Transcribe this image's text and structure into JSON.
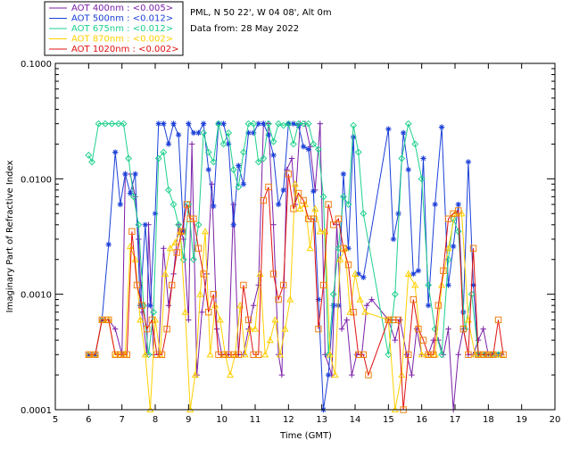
{
  "chart_data": {
    "type": "line",
    "title_lines": [
      "PML, N 50 22', W 04 08', Alt 0m",
      "Data from: 28 May 2022"
    ],
    "xlabel": "Time (GMT)",
    "ylabel": "Imaginary Part of Refractive Index",
    "xlim": [
      5,
      20
    ],
    "ylim": [
      0.0001,
      0.1
    ],
    "yscale": "log",
    "x_ticks": [
      "5",
      "6",
      "7",
      "8",
      "9",
      "10",
      "11",
      "12",
      "13",
      "14",
      "15",
      "16",
      "17",
      "18",
      "19",
      "20"
    ],
    "y_ticks": [
      "0.0001",
      "0.0010",
      "0.0100",
      "0.1000"
    ],
    "legend_position": "top-left",
    "series": [
      {
        "name": "AOT  400nm : <0.005>",
        "color": "#7a1fa8",
        "marker": "plus",
        "x": [
          6.0,
          6.2,
          6.4,
          6.6,
          6.8,
          7.0,
          7.1,
          7.25,
          7.4,
          7.5,
          7.6,
          7.75,
          7.8,
          7.95,
          8.1,
          8.25,
          8.4,
          8.55,
          8.7,
          8.85,
          9.0,
          9.1,
          9.25,
          9.4,
          9.55,
          9.7,
          9.85,
          10.0,
          10.2,
          10.35,
          10.5,
          10.65,
          10.8,
          10.95,
          11.1,
          11.25,
          11.4,
          11.55,
          11.7,
          11.8,
          11.95,
          12.1,
          12.2,
          12.35,
          12.5,
          12.65,
          12.8,
          12.95,
          13.1,
          13.3,
          13.45,
          13.6,
          13.75,
          13.9,
          14.05,
          14.2,
          14.35,
          14.5,
          15.0,
          15.2,
          15.35,
          15.55,
          15.7,
          15.85,
          16.0,
          16.2,
          16.35,
          16.5,
          16.65,
          16.8,
          16.95,
          17.1,
          17.25,
          17.4,
          17.55,
          17.7,
          17.85,
          18.0,
          18.2,
          18.4
        ],
        "y": [
          0.0003,
          0.0003,
          0.0006,
          0.0006,
          0.0005,
          0.0003,
          0.011,
          0.011,
          0.007,
          0.003,
          0.0007,
          0.0003,
          0.004,
          0.0003,
          0.0003,
          0.0025,
          0.0008,
          0.0015,
          0.004,
          0.003,
          0.0006,
          0.02,
          0.0002,
          0.0007,
          0.0015,
          0.009,
          0.0005,
          0.0003,
          0.0003,
          0.006,
          0.0003,
          0.0003,
          0.0005,
          0.0008,
          0.0012,
          0.03,
          0.03,
          0.004,
          0.0003,
          0.0002,
          0.012,
          0.015,
          0.006,
          0.03,
          0.03,
          0.019,
          0.008,
          0.03,
          0.0003,
          0.0002,
          0.004,
          0.0005,
          0.0006,
          0.0002,
          0.0003,
          0.0003,
          0.0008,
          0.0009,
          0.0006,
          0.0004,
          0.0006,
          0.0003,
          0.0002,
          0.0005,
          0.0003,
          0.0003,
          0.0004,
          0.0004,
          0.0003,
          0.0005,
          0.0001,
          0.0003,
          0.0005,
          0.0003,
          0.0003,
          0.0004,
          0.0005,
          0.0003,
          0.0003,
          0.0003
        ]
      },
      {
        "name": "AOT  500nm : <0.012>",
        "color": "#1a3fd8",
        "marker": "asterisk",
        "x": [
          6.0,
          6.2,
          6.4,
          6.6,
          6.8,
          6.95,
          7.1,
          7.25,
          7.4,
          7.55,
          7.7,
          7.85,
          8.0,
          8.1,
          8.25,
          8.4,
          8.55,
          8.7,
          8.85,
          9.0,
          9.15,
          9.3,
          9.45,
          9.6,
          9.75,
          9.9,
          10.05,
          10.2,
          10.35,
          10.5,
          10.65,
          10.8,
          10.95,
          11.1,
          11.25,
          11.4,
          11.55,
          11.7,
          11.85,
          12.0,
          12.15,
          12.3,
          12.45,
          12.6,
          12.75,
          12.9,
          13.05,
          13.2,
          13.35,
          13.5,
          13.65,
          13.8,
          13.95,
          14.1,
          14.25,
          15.0,
          15.15,
          15.3,
          15.45,
          15.6,
          15.75,
          15.9,
          16.05,
          16.2,
          16.4,
          16.6,
          16.8,
          16.95,
          17.1,
          17.25,
          17.4,
          17.55,
          17.7,
          17.9,
          18.1,
          18.3
        ],
        "y": [
          0.0003,
          0.0003,
          0.0006,
          0.0027,
          0.017,
          0.006,
          0.011,
          0.0075,
          0.011,
          0.0008,
          0.004,
          0.0008,
          0.005,
          0.03,
          0.03,
          0.02,
          0.03,
          0.024,
          0.0035,
          0.03,
          0.025,
          0.025,
          0.03,
          0.012,
          0.0058,
          0.03,
          0.03,
          0.02,
          0.004,
          0.013,
          0.009,
          0.025,
          0.025,
          0.03,
          0.03,
          0.024,
          0.016,
          0.006,
          0.008,
          0.03,
          0.03,
          0.029,
          0.019,
          0.018,
          0.0078,
          0.0009,
          0.0001,
          0.0002,
          0.0008,
          0.0008,
          0.011,
          0.0025,
          0.023,
          0.0015,
          0.0014,
          0.027,
          0.003,
          0.005,
          0.025,
          0.012,
          0.0015,
          0.0016,
          0.015,
          0.0008,
          0.006,
          0.028,
          0.0012,
          0.0026,
          0.006,
          0.0007,
          0.014,
          0.0012,
          0.0003,
          0.0003,
          0.0003,
          0.0003
        ]
      },
      {
        "name": "AOT  675nm : <0.012>",
        "color": "#1fd08c",
        "marker": "diamond",
        "x": [
          6.0,
          6.1,
          6.3,
          6.5,
          6.7,
          6.9,
          7.05,
          7.2,
          7.35,
          7.5,
          7.65,
          7.8,
          7.95,
          8.1,
          8.25,
          8.4,
          8.55,
          8.7,
          8.85,
          9.0,
          9.15,
          9.3,
          9.45,
          9.6,
          9.75,
          9.9,
          10.05,
          10.2,
          10.35,
          10.5,
          10.65,
          10.8,
          10.95,
          11.1,
          11.25,
          11.4,
          11.55,
          11.7,
          11.85,
          12.0,
          12.15,
          12.3,
          12.45,
          12.6,
          12.75,
          12.9,
          13.05,
          13.2,
          13.35,
          13.5,
          13.65,
          13.8,
          13.95,
          14.1,
          14.25,
          15.0,
          15.2,
          15.4,
          15.6,
          15.8,
          16.0,
          16.2,
          16.4,
          16.6,
          16.8,
          16.95,
          17.1,
          17.3,
          17.5,
          17.7,
          17.9,
          18.1,
          18.3
        ],
        "y": [
          0.016,
          0.014,
          0.03,
          0.03,
          0.03,
          0.03,
          0.03,
          0.015,
          0.007,
          0.004,
          0.0008,
          0.0003,
          0.0007,
          0.015,
          0.017,
          0.008,
          0.006,
          0.004,
          0.002,
          0.006,
          0.002,
          0.004,
          0.025,
          0.017,
          0.014,
          0.03,
          0.02,
          0.025,
          0.012,
          0.0085,
          0.017,
          0.03,
          0.03,
          0.014,
          0.015,
          0.03,
          0.021,
          0.03,
          0.029,
          0.03,
          0.02,
          0.03,
          0.03,
          0.03,
          0.02,
          0.018,
          0.007,
          0.0003,
          0.001,
          0.0025,
          0.007,
          0.006,
          0.029,
          0.017,
          0.005,
          0.0003,
          0.001,
          0.015,
          0.03,
          0.02,
          0.01,
          0.0012,
          0.0005,
          0.0003,
          0.002,
          0.0045,
          0.0035,
          0.0005,
          0.001,
          0.0003,
          0.0003,
          0.0003,
          0.0003
        ]
      },
      {
        "name": "AOT  870nm : <0.002>",
        "color": "#ffd000",
        "marker": "triangle",
        "x": [
          6.0,
          6.2,
          6.4,
          6.6,
          6.8,
          6.95,
          7.1,
          7.25,
          7.4,
          7.55,
          7.7,
          7.85,
          8.0,
          8.15,
          8.3,
          8.45,
          8.6,
          8.75,
          8.9,
          9.05,
          9.2,
          9.35,
          9.5,
          9.65,
          9.8,
          9.95,
          10.1,
          10.25,
          10.4,
          10.55,
          10.7,
          10.85,
          11.0,
          11.15,
          11.3,
          11.45,
          11.6,
          11.75,
          11.9,
          12.05,
          12.2,
          12.35,
          12.5,
          12.65,
          12.8,
          12.95,
          13.1,
          13.25,
          13.4,
          13.55,
          13.7,
          13.85,
          14.0,
          14.15,
          14.3,
          15.0,
          15.2,
          15.4,
          15.6,
          15.8,
          16.0,
          16.2,
          16.4,
          16.6,
          16.8,
          17.0,
          17.2,
          17.4,
          17.6,
          17.8,
          18.0,
          18.2,
          18.4
        ],
        "y": [
          0.0003,
          0.0003,
          0.0006,
          0.0006,
          0.0003,
          0.0003,
          0.0003,
          0.0026,
          0.002,
          0.0006,
          0.0003,
          0.0001,
          0.0006,
          0.0003,
          0.0015,
          0.0025,
          0.0028,
          0.0035,
          0.0007,
          0.0001,
          0.0002,
          0.001,
          0.0035,
          0.0003,
          0.0008,
          0.0006,
          0.0003,
          0.0002,
          0.0003,
          0.0008,
          0.0003,
          0.0005,
          0.0005,
          0.0015,
          0.0003,
          0.0004,
          0.0006,
          0.0003,
          0.0005,
          0.0009,
          0.009,
          0.0055,
          0.006,
          0.0025,
          0.0055,
          0.0035,
          0.0035,
          0.0003,
          0.0002,
          0.002,
          0.0025,
          0.0007,
          0.0015,
          0.0009,
          0.0007,
          0.0006,
          0.0001,
          0.0002,
          0.0015,
          0.0012,
          0.0003,
          0.0003,
          0.0003,
          0.0012,
          0.0025,
          0.005,
          0.005,
          0.0006,
          0.0003,
          0.0003,
          0.0003,
          0.0003,
          0.0003
        ]
      },
      {
        "name": "AOT 1020nm : <0.002>",
        "color": "#e01010",
        "marker": "square",
        "x": [
          6.0,
          6.2,
          6.4,
          6.6,
          6.8,
          6.95,
          7.05,
          7.15,
          7.3,
          7.45,
          7.6,
          7.75,
          7.9,
          8.05,
          8.2,
          8.35,
          8.5,
          8.65,
          8.8,
          8.95,
          9.05,
          9.15,
          9.3,
          9.45,
          9.6,
          9.75,
          9.9,
          10.05,
          10.2,
          10.35,
          10.5,
          10.65,
          10.8,
          10.95,
          11.1,
          11.25,
          11.4,
          11.55,
          11.7,
          11.85,
          12.0,
          12.15,
          12.3,
          12.45,
          12.6,
          12.75,
          12.9,
          13.05,
          13.2,
          13.35,
          13.5,
          13.65,
          13.8,
          13.95,
          14.1,
          14.25,
          14.4,
          15.0,
          15.15,
          15.3,
          15.45,
          15.6,
          15.75,
          15.9,
          16.05,
          16.2,
          16.35,
          16.5,
          16.65,
          16.8,
          16.95,
          17.1,
          17.25,
          17.4,
          17.55,
          17.7,
          17.85,
          18.0,
          18.15,
          18.3,
          18.45
        ],
        "y": [
          0.0003,
          0.0003,
          0.0006,
          0.0006,
          0.0003,
          0.0003,
          0.0003,
          0.0003,
          0.0035,
          0.0012,
          0.0008,
          0.0005,
          0.0006,
          0.0003,
          0.0003,
          0.0005,
          0.0012,
          0.0023,
          0.0035,
          0.006,
          0.0045,
          0.0045,
          0.0025,
          0.0015,
          0.0007,
          0.001,
          0.0003,
          0.0003,
          0.0003,
          0.0003,
          0.0003,
          0.0012,
          0.0006,
          0.0003,
          0.0003,
          0.0065,
          0.0085,
          0.0015,
          0.0009,
          0.0012,
          0.011,
          0.0055,
          0.0075,
          0.0065,
          0.0045,
          0.0045,
          0.0005,
          0.0012,
          0.006,
          0.004,
          0.0045,
          0.0025,
          0.0018,
          0.0007,
          0.0003,
          0.0003,
          0.0002,
          0.0006,
          0.0006,
          0.0006,
          0.0001,
          0.0003,
          0.0009,
          0.0005,
          0.0004,
          0.0003,
          0.0003,
          0.0008,
          0.0016,
          0.0045,
          0.005,
          0.0053,
          0.0005,
          0.0003,
          0.0025,
          0.0003,
          0.0003,
          0.0003,
          0.0003,
          0.0006,
          0.0003
        ]
      }
    ]
  }
}
